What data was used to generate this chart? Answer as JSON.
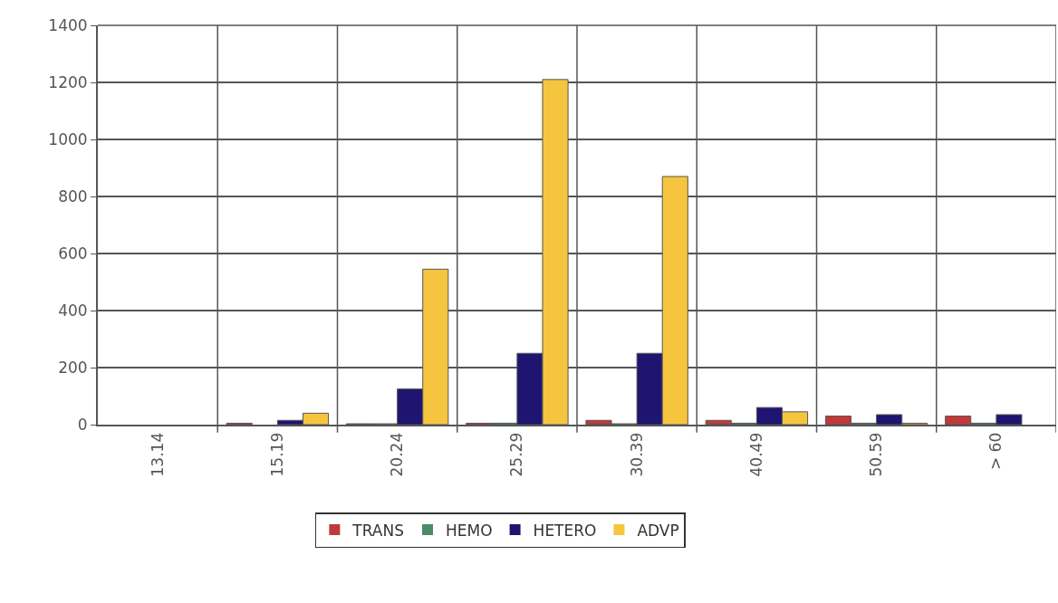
{
  "chart_data": {
    "type": "bar",
    "categories": [
      "13.14",
      "15.19",
      "20.24",
      "25.29",
      "30.39",
      "40.49",
      "50.59",
      "> 60"
    ],
    "series": [
      {
        "name": "TRANS",
        "color": "#c0393b",
        "values": [
          0,
          5,
          3,
          5,
          15,
          15,
          30,
          30
        ]
      },
      {
        "name": "HEMO",
        "color": "#4d8a6a",
        "values": [
          0,
          0,
          3,
          5,
          3,
          5,
          5,
          5
        ]
      },
      {
        "name": "HETERO",
        "color": "#1f1470",
        "values": [
          0,
          15,
          125,
          250,
          250,
          60,
          35,
          35
        ]
      },
      {
        "name": "ADVP",
        "color": "#f6c540",
        "values": [
          0,
          40,
          545,
          1210,
          870,
          45,
          5,
          0
        ]
      }
    ],
    "ylim": [
      0,
      1400
    ],
    "yticks": [
      0,
      200,
      400,
      600,
      800,
      1000,
      1200,
      1400
    ],
    "grid": true,
    "legend": "bottom"
  }
}
